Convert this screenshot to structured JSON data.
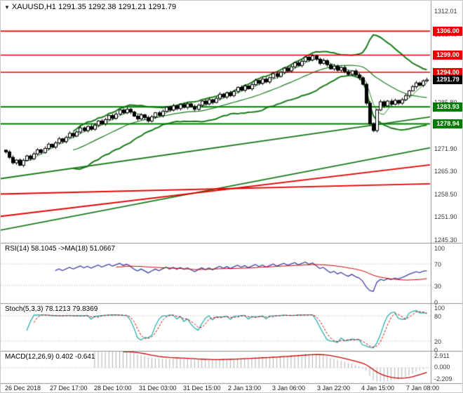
{
  "header": {
    "marker": "▼",
    "symbol": "XAUUSD,H1",
    "ohlc": "1291.35 1292.38 1291.21 1291.79"
  },
  "colors": {
    "bull": "#ffffff",
    "bear": "#000000",
    "outline": "#000000",
    "band": "#1a7a1a",
    "ma": "#2e8b2e",
    "level_red": "#e60000",
    "level_green": "#007a00",
    "trend_green": "#1a7a1a",
    "trend_red": "#e60000",
    "rsi": "#4040a0",
    "rsi_ma": "#cc0000",
    "stoch_k": "#2ab0b0",
    "stoch_d": "#cc0000",
    "macd_hist": "#b0b0b0",
    "macd_signal": "#cc0000",
    "axis_text": "#3c3c3c",
    "separator": "#909090",
    "panel_level": "#b0b0b0"
  },
  "chart_data": {
    "type": "candlestick",
    "symbol": "XAUUSD",
    "timeframe": "H1",
    "title": "XAUUSD,H1 1291.35 1292.38 1291.21 1291.79",
    "x_labels": [
      "26 Dec 2018",
      "27 Dec 17:00",
      "28 Dec 10:00",
      "31 Dec 03:00",
      "31 Dec 15:00",
      "2 Jan 13:00",
      "3 Jan 06:00",
      "3 Jan 22:00",
      "4 Jan 15:00",
      "7 Jan 08:00"
    ],
    "main": {
      "price_axis_ticks": [
        "1312.01",
        "1305.40",
        "1298.80",
        "1292.10",
        "1285.80",
        "1278.80",
        "1271.90",
        "1265.30",
        "1258.50",
        "1251.90",
        "1245.30"
      ],
      "price_range": [
        1245.3,
        1312.01
      ],
      "levels": {
        "resistance": [
          "1306.00",
          "1299.00",
          "1294.00"
        ],
        "support": [
          "1283.93",
          "1278.94"
        ],
        "current": "1291.79"
      },
      "trendlines": [
        {
          "color": "green",
          "from": 1263.0,
          "to": 1281.0
        },
        {
          "color": "green",
          "from": 1248.0,
          "to": 1272.0
        },
        {
          "color": "red",
          "from": 1252.0,
          "to": 1267.0
        },
        {
          "color": "red",
          "from": 1258.5,
          "to": 1261.5
        }
      ],
      "bollinger": {
        "period": 20,
        "deviation": 2
      },
      "ma_period": 5,
      "closes": [
        1270.8,
        1269.2,
        1267.6,
        1268.4,
        1266.9,
        1268.3,
        1269.6,
        1268.8,
        1270.2,
        1271.4,
        1270.6,
        1271.8,
        1273.0,
        1272.2,
        1273.4,
        1274.6,
        1273.8,
        1275.0,
        1276.2,
        1275.4,
        1276.6,
        1277.8,
        1277.0,
        1278.2,
        1277.4,
        1278.6,
        1279.8,
        1279.0,
        1280.2,
        1281.4,
        1280.6,
        1281.8,
        1283.0,
        1282.2,
        1283.2,
        1282.4,
        1281.2,
        1280.4,
        1281.6,
        1280.8,
        1279.8,
        1281.0,
        1282.2,
        1281.4,
        1282.6,
        1283.8,
        1283.0,
        1284.2,
        1283.4,
        1284.6,
        1283.8,
        1284.8,
        1284.0,
        1283.2,
        1284.4,
        1285.6,
        1284.8,
        1286.0,
        1285.2,
        1286.4,
        1287.6,
        1286.8,
        1288.0,
        1287.2,
        1288.4,
        1289.6,
        1288.8,
        1290.0,
        1289.2,
        1290.4,
        1291.6,
        1290.8,
        1292.0,
        1291.2,
        1292.4,
        1293.6,
        1292.8,
        1294.0,
        1295.2,
        1294.4,
        1295.6,
        1296.8,
        1296.0,
        1297.2,
        1298.4,
        1297.6,
        1298.8,
        1297.8,
        1296.6,
        1297.4,
        1296.2,
        1295.0,
        1295.8,
        1294.6,
        1295.4,
        1294.2,
        1293.4,
        1294.4,
        1293.2,
        1292.4,
        1290.5,
        1285.0,
        1279.0,
        1277.0,
        1283.0,
        1285.4,
        1284.2,
        1285.6,
        1284.7,
        1285.8,
        1285.0,
        1286.0,
        1287.2,
        1288.6,
        1289.8,
        1290.9,
        1290.2,
        1291.5,
        1291.79
      ]
    },
    "rsi": {
      "title": "RSI(14) 58.1045 ->MA(18) 51.0667",
      "period": 14,
      "ma_period": 18,
      "value": 58.1045,
      "ma_value": 51.0667,
      "ticks": [
        "100",
        "70",
        "30",
        "0"
      ],
      "levels": [
        70,
        30
      ]
    },
    "stoch": {
      "title": "Stoch(5,3,3) 78.1213 79.8369",
      "k_period": 5,
      "slowing": 3,
      "d_period": 3,
      "value": 78.1213,
      "signal": 79.8369,
      "ticks": [
        "100",
        "80",
        "20",
        "0"
      ],
      "levels": [
        80,
        20
      ]
    },
    "macd": {
      "title": "MACD(12,26,9) 0.402 -0.641",
      "fast": 12,
      "slow": 26,
      "signal_period": 9,
      "value": 0.402,
      "signal": -0.641,
      "ticks": [
        "2.911",
        "0.000",
        "-2.209"
      ]
    }
  }
}
